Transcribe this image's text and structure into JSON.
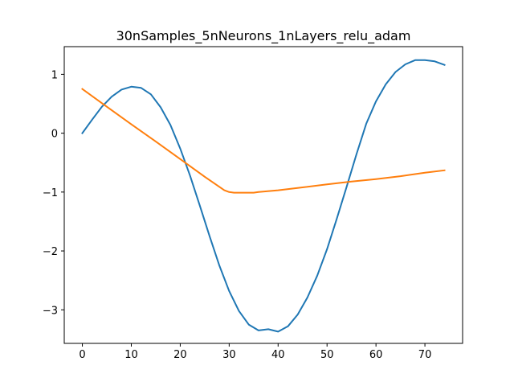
{
  "chart_data": {
    "type": "line",
    "title": "30nSamples_5nNeurons_1nLayers_relu_adam",
    "xlabel": "",
    "ylabel": "",
    "xlim": [
      -3.7,
      77.7
    ],
    "ylim": [
      -3.57,
      1.47
    ],
    "xticks": [
      0,
      10,
      20,
      30,
      40,
      50,
      60,
      70
    ],
    "yticks": [
      1,
      0,
      -1,
      -2,
      -3
    ],
    "xtick_labels": [
      "0",
      "10",
      "20",
      "30",
      "40",
      "50",
      "60",
      "70"
    ],
    "ytick_labels": [
      "1",
      "0",
      "−1",
      "−2",
      "−3"
    ],
    "grid": false,
    "legend": false,
    "series": [
      {
        "color": "#1f77b4",
        "x": [
          0,
          2,
          4,
          6,
          8,
          10,
          12,
          14,
          16,
          18,
          20,
          22,
          24,
          26,
          28,
          30,
          32,
          34,
          36,
          38,
          40,
          42,
          44,
          46,
          48,
          50,
          52,
          54,
          56,
          58,
          60,
          62,
          64,
          66,
          68,
          70,
          72,
          74
        ],
        "values": [
          0.0,
          0.23,
          0.45,
          0.62,
          0.74,
          0.79,
          0.77,
          0.66,
          0.44,
          0.14,
          -0.26,
          -0.72,
          -1.23,
          -1.75,
          -2.25,
          -2.68,
          -3.02,
          -3.25,
          -3.35,
          -3.33,
          -3.37,
          -3.28,
          -3.08,
          -2.79,
          -2.42,
          -1.97,
          -1.45,
          -0.91,
          -0.36,
          0.16,
          0.54,
          0.83,
          1.04,
          1.17,
          1.24,
          1.24,
          1.22,
          1.16
        ]
      },
      {
        "color": "#ff7f0e",
        "x": [
          0,
          5,
          10,
          15,
          20,
          25,
          29,
          30,
          31,
          33,
          35,
          36,
          40,
          45,
          50,
          55,
          60,
          65,
          70,
          74
        ],
        "values": [
          0.75,
          0.45,
          0.15,
          -0.14,
          -0.44,
          -0.74,
          -0.97,
          -1.0,
          -1.01,
          -1.01,
          -1.01,
          -1.0,
          -0.97,
          -0.92,
          -0.87,
          -0.82,
          -0.78,
          -0.73,
          -0.67,
          -0.63
        ]
      }
    ]
  }
}
